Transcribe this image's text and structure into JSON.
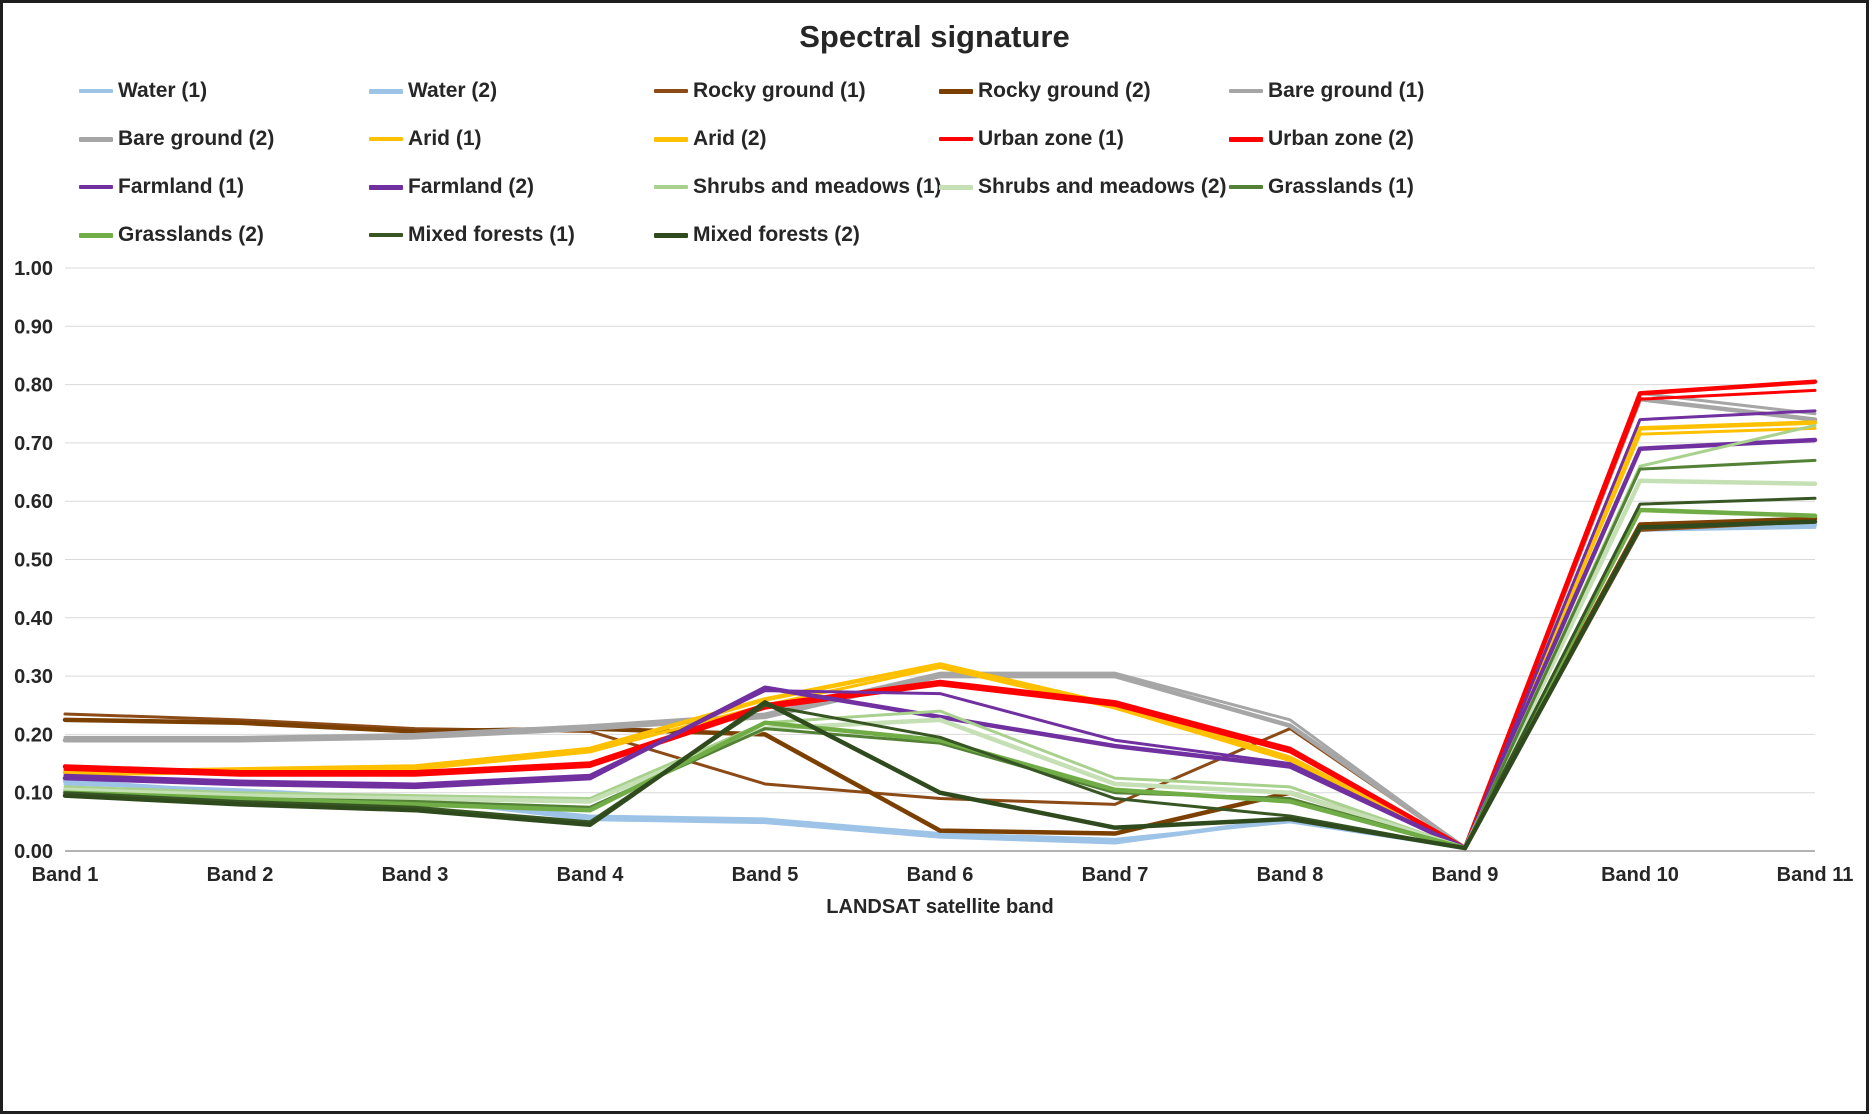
{
  "chart_data": {
    "type": "line",
    "title": "Spectral signature",
    "xlabel": "LANDSAT satellite band",
    "ylabel": "",
    "ylim": [
      0,
      1
    ],
    "ytick_step": 0.1,
    "grid": true,
    "legend_position": "top",
    "categories": [
      "Band 1",
      "Band 2",
      "Band 3",
      "Band 4",
      "Band 5",
      "Band 6",
      "Band 7",
      "Band 8",
      "Band 9",
      "Band 10",
      "Band 11"
    ],
    "series": [
      {
        "name": "Water (1)",
        "color": "#9DC3E6",
        "values": [
          0.115,
          0.105,
          0.09,
          0.06,
          0.055,
          0.03,
          0.02,
          0.05,
          0.005,
          0.55,
          0.555
        ]
      },
      {
        "name": "Water (2)",
        "color": "#9DC3E6",
        "values": [
          0.12,
          0.1,
          0.09,
          0.055,
          0.05,
          0.025,
          0.015,
          0.055,
          0.005,
          0.555,
          0.56
        ]
      },
      {
        "name": "Rocky ground (1)",
        "color": "#8C4A16",
        "values": [
          0.235,
          0.225,
          0.21,
          0.205,
          0.115,
          0.09,
          0.08,
          0.21,
          0.005,
          0.55,
          0.565
        ]
      },
      {
        "name": "Rocky ground (2)",
        "color": "#7B3F00",
        "values": [
          0.225,
          0.22,
          0.205,
          0.21,
          0.2,
          0.035,
          0.03,
          0.1,
          0.005,
          0.56,
          0.57
        ]
      },
      {
        "name": "Bare ground (1)",
        "color": "#A6A6A6",
        "values": [
          0.195,
          0.195,
          0.2,
          0.215,
          0.235,
          0.305,
          0.305,
          0.225,
          0.005,
          0.785,
          0.75
        ]
      },
      {
        "name": "Bare ground (2)",
        "color": "#A6A6A6",
        "values": [
          0.19,
          0.19,
          0.195,
          0.21,
          0.23,
          0.3,
          0.3,
          0.215,
          0.005,
          0.775,
          0.74
        ]
      },
      {
        "name": "Arid (1)",
        "color": "#FFC000",
        "values": [
          0.13,
          0.135,
          0.14,
          0.17,
          0.25,
          0.315,
          0.245,
          0.155,
          0.005,
          0.715,
          0.725
        ]
      },
      {
        "name": "Arid (2)",
        "color": "#FFC000",
        "values": [
          0.135,
          0.14,
          0.145,
          0.175,
          0.26,
          0.32,
          0.25,
          0.16,
          0.005,
          0.725,
          0.735
        ]
      },
      {
        "name": "Urban zone (1)",
        "color": "#FF0000",
        "values": [
          0.14,
          0.13,
          0.13,
          0.145,
          0.245,
          0.285,
          0.25,
          0.17,
          0.005,
          0.775,
          0.79
        ]
      },
      {
        "name": "Urban zone (2)",
        "color": "#FF0000",
        "values": [
          0.145,
          0.135,
          0.135,
          0.15,
          0.25,
          0.29,
          0.255,
          0.175,
          0.005,
          0.785,
          0.805
        ]
      },
      {
        "name": "Farmland (1)",
        "color": "#7030A0",
        "values": [
          0.13,
          0.12,
          0.115,
          0.13,
          0.275,
          0.27,
          0.19,
          0.15,
          0.005,
          0.74,
          0.755
        ]
      },
      {
        "name": "Farmland (2)",
        "color": "#7030A0",
        "values": [
          0.125,
          0.115,
          0.11,
          0.125,
          0.28,
          0.23,
          0.18,
          0.145,
          0.005,
          0.69,
          0.705
        ]
      },
      {
        "name": "Shrubs and meadows (1)",
        "color": "#A9D18E",
        "values": [
          0.11,
          0.1,
          0.095,
          0.09,
          0.22,
          0.24,
          0.125,
          0.11,
          0.005,
          0.66,
          0.73
        ]
      },
      {
        "name": "Shrubs and meadows (2)",
        "color": "#C5E0B4",
        "values": [
          0.105,
          0.095,
          0.09,
          0.085,
          0.21,
          0.225,
          0.115,
          0.1,
          0.005,
          0.635,
          0.63
        ]
      },
      {
        "name": "Grasslands (1)",
        "color": "#538135",
        "values": [
          0.1,
          0.09,
          0.085,
          0.075,
          0.21,
          0.185,
          0.1,
          0.09,
          0.005,
          0.655,
          0.67
        ]
      },
      {
        "name": "Grasslands (2)",
        "color": "#70AD47",
        "values": [
          0.1,
          0.09,
          0.08,
          0.07,
          0.22,
          0.19,
          0.105,
          0.085,
          0.005,
          0.585,
          0.575
        ]
      },
      {
        "name": "Mixed forests (1)",
        "color": "#375623",
        "values": [
          0.1,
          0.085,
          0.075,
          0.05,
          0.25,
          0.195,
          0.09,
          0.06,
          0.005,
          0.595,
          0.605
        ]
      },
      {
        "name": "Mixed forests (2)",
        "color": "#2F4B1E",
        "values": [
          0.095,
          0.08,
          0.07,
          0.045,
          0.255,
          0.1,
          0.04,
          0.055,
          0.005,
          0.555,
          0.565
        ]
      }
    ]
  }
}
